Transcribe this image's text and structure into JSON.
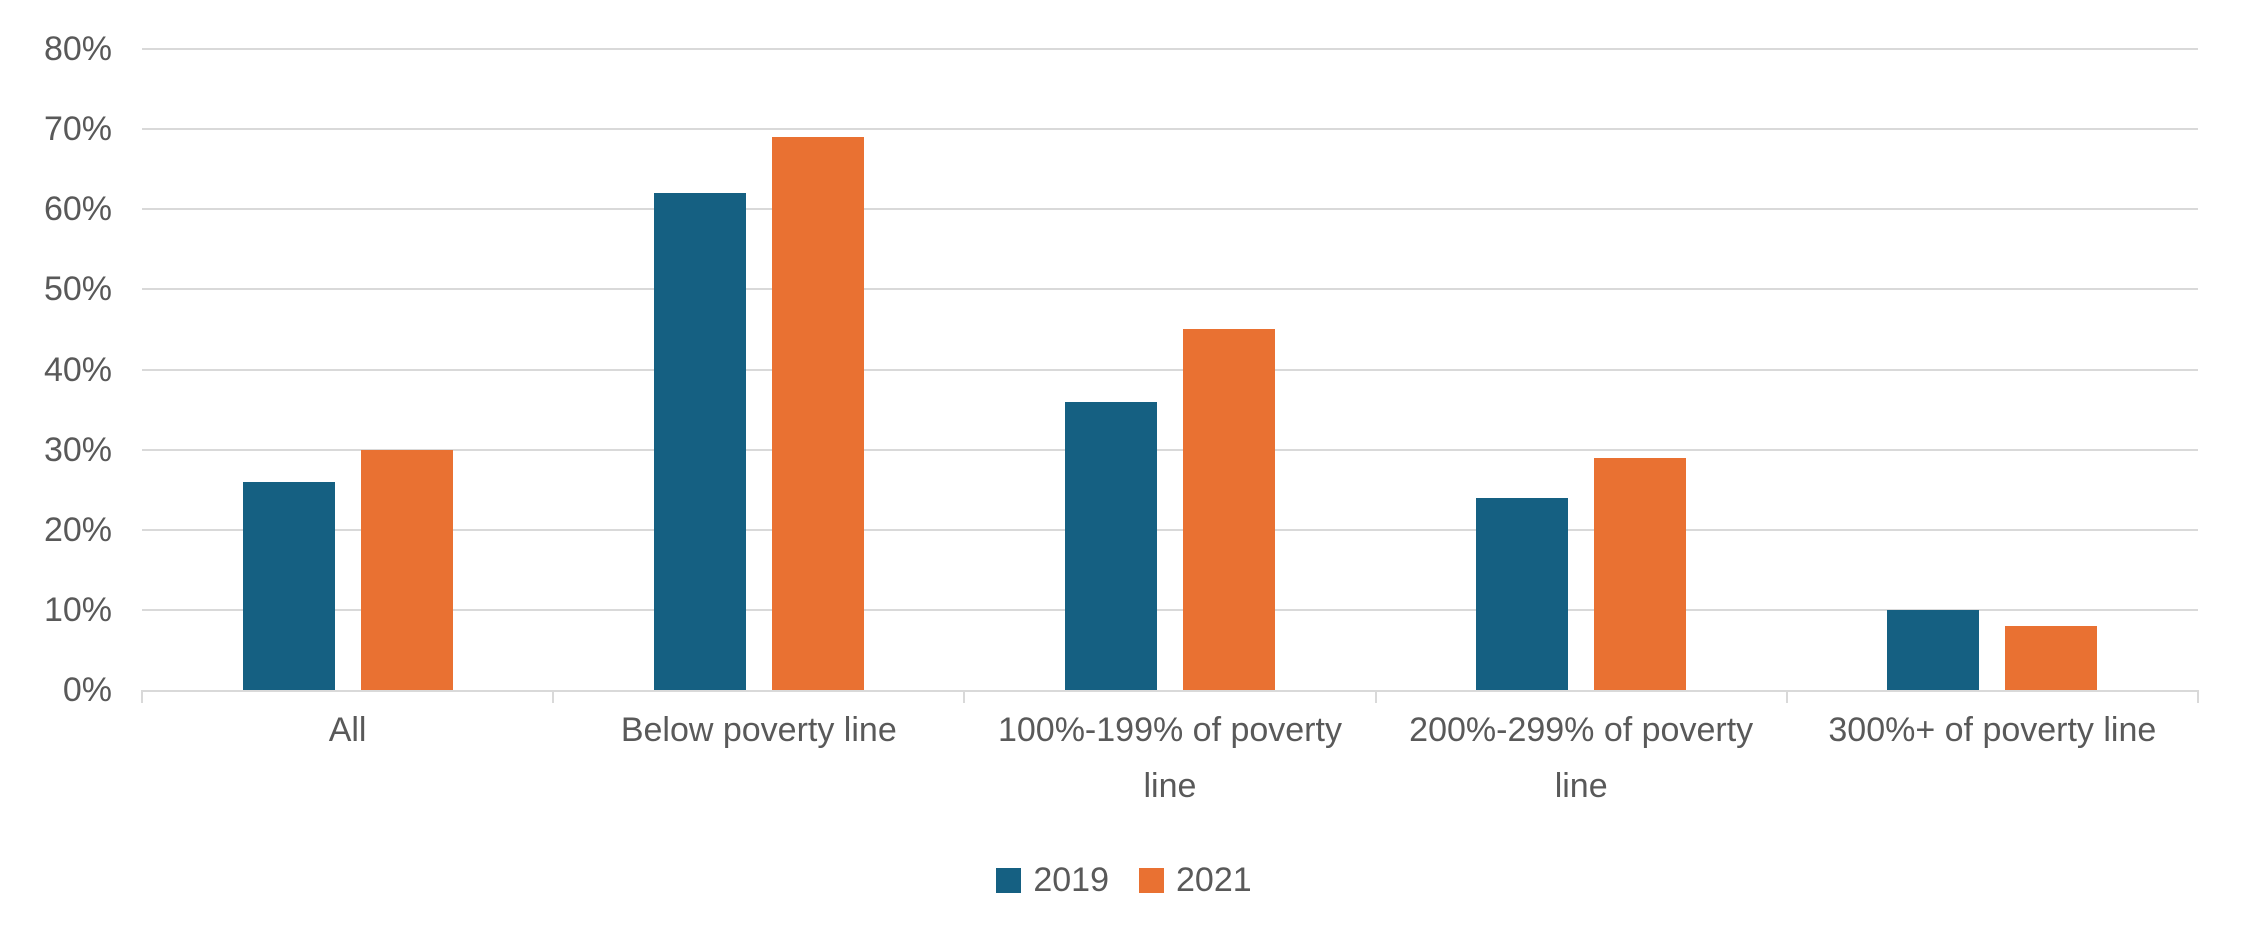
{
  "chart_data": {
    "type": "bar",
    "title": "",
    "xlabel": "",
    "ylabel": "",
    "categories": [
      "All",
      "Below poverty line",
      "100%-199% of poverty line",
      "200%-299% of poverty line",
      "300%+ of poverty line"
    ],
    "series": [
      {
        "name": "2019",
        "color": "#156082",
        "values": [
          26,
          62,
          36,
          24,
          10
        ]
      },
      {
        "name": "2021",
        "color": "#E97132",
        "values": [
          30,
          69,
          45,
          29,
          8
        ]
      }
    ],
    "ylim": [
      0,
      80
    ],
    "ytick_step": 10,
    "ytick_labels": [
      "0%",
      "10%",
      "20%",
      "30%",
      "40%",
      "50%",
      "60%",
      "70%",
      "80%"
    ],
    "grid": true,
    "legend_position": "bottom"
  },
  "styles": {
    "grid_color": "#D9D9D9",
    "axis_color": "#D9D9D9",
    "label_color": "#595959",
    "background": "#FFFFFF"
  }
}
